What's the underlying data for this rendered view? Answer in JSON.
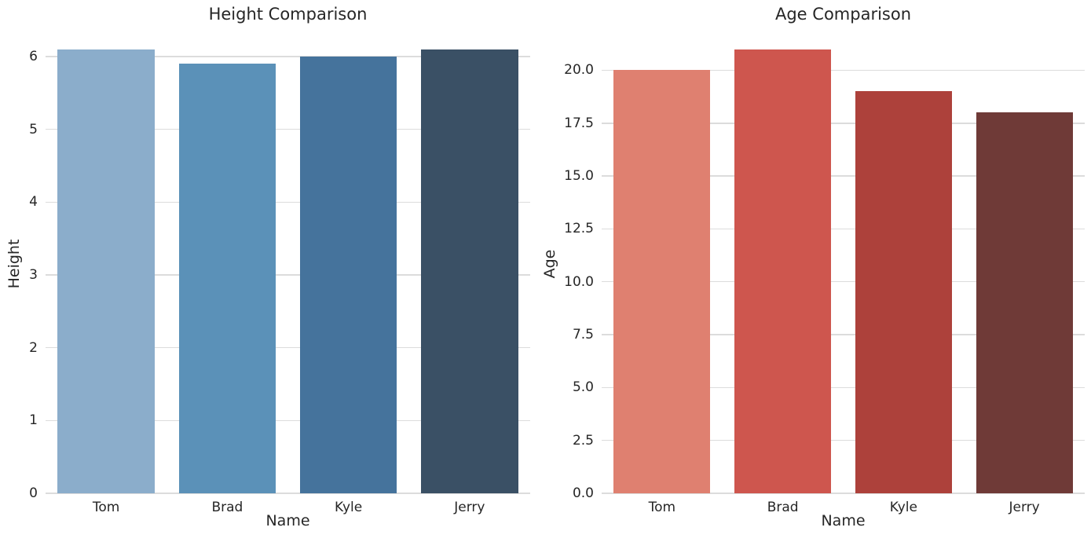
{
  "figure": {
    "background_color": "#ffffff",
    "grid_color": "#dcdcdc",
    "text_color": "#262626"
  },
  "chart_data": [
    {
      "type": "bar",
      "title": "Height Comparison",
      "xlabel": "Name",
      "ylabel": "Height",
      "categories": [
        "Tom",
        "Brad",
        "Kyle",
        "Jerry"
      ],
      "values": [
        6.1,
        5.9,
        6.0,
        6.1
      ],
      "bar_colors": [
        "#8badcb",
        "#5b91b8",
        "#45739c",
        "#3a5065"
      ],
      "ylim": [
        0,
        6.29
      ],
      "yticks": [
        0,
        1,
        2,
        3,
        4,
        5,
        6
      ],
      "ytick_labels": [
        "0",
        "1",
        "2",
        "3",
        "4",
        "5",
        "6"
      ],
      "bar_width_fraction": 0.8,
      "grid": true,
      "legend": "none"
    },
    {
      "type": "bar",
      "title": "Age Comparison",
      "xlabel": "Name",
      "ylabel": "Age",
      "categories": [
        "Tom",
        "Brad",
        "Kyle",
        "Jerry"
      ],
      "values": [
        20,
        21,
        19,
        18
      ],
      "bar_colors": [
        "#df8070",
        "#ce564e",
        "#ad413b",
        "#6f3a37"
      ],
      "ylim": [
        0,
        21.65
      ],
      "yticks": [
        0,
        2.5,
        5,
        7.5,
        10,
        12.5,
        15,
        17.5,
        20
      ],
      "ytick_labels": [
        "0.0",
        "2.5",
        "5.0",
        "7.5",
        "10.0",
        "12.5",
        "15.0",
        "17.5",
        "20.0"
      ],
      "bar_width_fraction": 0.8,
      "grid": true,
      "legend": "none"
    }
  ]
}
